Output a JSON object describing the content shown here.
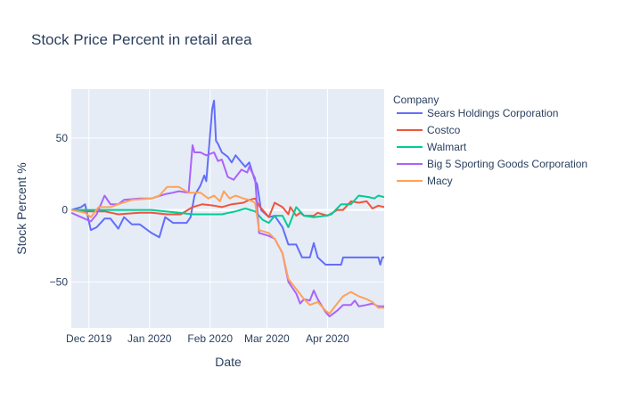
{
  "chart_data": {
    "type": "line",
    "title": "Stock Price Percent in retail area",
    "xlabel": "Date",
    "ylabel": "Stock Percent %",
    "x_range": [
      "2019-11-22",
      "2020-04-30"
    ],
    "ylim": [
      -82,
      84
    ],
    "x_ticks": [
      {
        "date": "2019-12-01",
        "label": "Dec 2019"
      },
      {
        "date": "2020-01-01",
        "label": "Jan 2020"
      },
      {
        "date": "2020-02-01",
        "label": "Feb 2020"
      },
      {
        "date": "2020-03-01",
        "label": "Mar 2020"
      },
      {
        "date": "2020-04-01",
        "label": "Apr 2020"
      }
    ],
    "y_ticks": [
      {
        "value": 50,
        "label": "50"
      },
      {
        "value": 0,
        "label": "0"
      },
      {
        "value": -50,
        "label": "−50"
      }
    ],
    "grid": true,
    "plot_background": "#e5ecf6",
    "legend": {
      "title": "Company",
      "placement": "right"
    },
    "series": [
      {
        "name": "Sears Holdings Corporation",
        "color": "#636efa",
        "points": [
          [
            "2019-11-22",
            0
          ],
          [
            "2019-11-27",
            2
          ],
          [
            "2019-11-29",
            4
          ],
          [
            "2019-12-02",
            -14
          ],
          [
            "2019-12-05",
            -12
          ],
          [
            "2019-12-09",
            -6
          ],
          [
            "2019-12-12",
            -6
          ],
          [
            "2019-12-16",
            -13
          ],
          [
            "2019-12-19",
            -5
          ],
          [
            "2019-12-23",
            -10
          ],
          [
            "2019-12-27",
            -10
          ],
          [
            "2020-01-02",
            -16
          ],
          [
            "2020-01-06",
            -19
          ],
          [
            "2020-01-09",
            -5
          ],
          [
            "2020-01-13",
            -9
          ],
          [
            "2020-01-16",
            -9
          ],
          [
            "2020-01-20",
            -9
          ],
          [
            "2020-01-22",
            -5
          ],
          [
            "2020-01-24",
            10
          ],
          [
            "2020-01-27",
            17
          ],
          [
            "2020-01-29",
            24
          ],
          [
            "2020-01-30",
            20
          ],
          [
            "2020-02-02",
            70
          ],
          [
            "2020-02-03",
            76
          ],
          [
            "2020-02-04",
            48
          ],
          [
            "2020-02-05",
            46
          ],
          [
            "2020-02-07",
            40
          ],
          [
            "2020-02-10",
            37
          ],
          [
            "2020-02-12",
            33
          ],
          [
            "2020-02-14",
            38
          ],
          [
            "2020-02-17",
            33
          ],
          [
            "2020-02-19",
            30
          ],
          [
            "2020-02-21",
            33
          ],
          [
            "2020-02-24",
            20
          ],
          [
            "2020-02-25",
            18
          ],
          [
            "2020-02-27",
            0
          ],
          [
            "2020-03-02",
            -5
          ],
          [
            "2020-03-05",
            -4
          ],
          [
            "2020-03-09",
            -12
          ],
          [
            "2020-03-12",
            -24
          ],
          [
            "2020-03-16",
            -24
          ],
          [
            "2020-03-19",
            -33
          ],
          [
            "2020-03-23",
            -33
          ],
          [
            "2020-03-25",
            -23
          ],
          [
            "2020-03-27",
            -33
          ],
          [
            "2020-03-31",
            -38
          ],
          [
            "2020-04-03",
            -38
          ],
          [
            "2020-04-08",
            -38
          ],
          [
            "2020-04-09",
            -33
          ],
          [
            "2020-04-14",
            -33
          ],
          [
            "2020-04-20",
            -33
          ],
          [
            "2020-04-27",
            -33
          ],
          [
            "2020-04-28",
            -38
          ],
          [
            "2020-04-29",
            -33
          ],
          [
            "2020-04-30",
            -33
          ]
        ]
      },
      {
        "name": "Costco",
        "color": "#ef553b",
        "points": [
          [
            "2019-11-22",
            0
          ],
          [
            "2019-11-29",
            -1
          ],
          [
            "2019-12-09",
            -1
          ],
          [
            "2019-12-16",
            -3
          ],
          [
            "2019-12-27",
            -2
          ],
          [
            "2020-01-02",
            -2
          ],
          [
            "2020-01-10",
            -3
          ],
          [
            "2020-01-17",
            -3
          ],
          [
            "2020-01-23",
            2
          ],
          [
            "2020-01-28",
            4
          ],
          [
            "2020-02-03",
            3
          ],
          [
            "2020-02-07",
            2
          ],
          [
            "2020-02-12",
            4
          ],
          [
            "2020-02-18",
            5
          ],
          [
            "2020-02-21",
            7
          ],
          [
            "2020-02-24",
            8
          ],
          [
            "2020-02-26",
            3
          ],
          [
            "2020-03-02",
            -5
          ],
          [
            "2020-03-05",
            5
          ],
          [
            "2020-03-09",
            2
          ],
          [
            "2020-03-12",
            -3
          ],
          [
            "2020-03-13",
            2
          ],
          [
            "2020-03-16",
            -4
          ],
          [
            "2020-03-18",
            -2
          ],
          [
            "2020-03-20",
            -4
          ],
          [
            "2020-03-25",
            -4
          ],
          [
            "2020-03-27",
            -2
          ],
          [
            "2020-04-01",
            -4
          ],
          [
            "2020-04-06",
            0
          ],
          [
            "2020-04-09",
            0
          ],
          [
            "2020-04-13",
            6
          ],
          [
            "2020-04-17",
            5
          ],
          [
            "2020-04-21",
            6
          ],
          [
            "2020-04-24",
            1
          ],
          [
            "2020-04-27",
            3
          ],
          [
            "2020-04-30",
            2
          ]
        ]
      },
      {
        "name": "Walmart",
        "color": "#00cc96",
        "points": [
          [
            "2019-11-22",
            0
          ],
          [
            "2019-12-02",
            0
          ],
          [
            "2019-12-16",
            0
          ],
          [
            "2020-01-02",
            0
          ],
          [
            "2020-01-16",
            -2
          ],
          [
            "2020-01-23",
            -3
          ],
          [
            "2020-02-03",
            -3
          ],
          [
            "2020-02-07",
            -3
          ],
          [
            "2020-02-14",
            -1
          ],
          [
            "2020-02-19",
            1
          ],
          [
            "2020-02-24",
            -1
          ],
          [
            "2020-02-28",
            -7
          ],
          [
            "2020-03-02",
            -9
          ],
          [
            "2020-03-05",
            -4
          ],
          [
            "2020-03-09",
            -4
          ],
          [
            "2020-03-12",
            -12
          ],
          [
            "2020-03-16",
            2
          ],
          [
            "2020-03-20",
            -4
          ],
          [
            "2020-03-25",
            -5
          ],
          [
            "2020-03-31",
            -4
          ],
          [
            "2020-04-03",
            -3
          ],
          [
            "2020-04-08",
            4
          ],
          [
            "2020-04-13",
            4
          ],
          [
            "2020-04-17",
            10
          ],
          [
            "2020-04-22",
            9
          ],
          [
            "2020-04-25",
            8
          ],
          [
            "2020-04-27",
            10
          ],
          [
            "2020-04-30",
            9
          ]
        ]
      },
      {
        "name": "Big 5 Sporting Goods Corporation",
        "color": "#ab63fa",
        "points": [
          [
            "2019-11-22",
            -2
          ],
          [
            "2019-11-27",
            -5
          ],
          [
            "2019-12-02",
            -8
          ],
          [
            "2019-12-05",
            -3
          ],
          [
            "2019-12-09",
            10
          ],
          [
            "2019-12-12",
            4
          ],
          [
            "2019-12-16",
            4
          ],
          [
            "2019-12-19",
            7
          ],
          [
            "2019-12-27",
            8
          ],
          [
            "2020-01-02",
            8
          ],
          [
            "2020-01-09",
            11
          ],
          [
            "2020-01-13",
            12
          ],
          [
            "2020-01-16",
            13
          ],
          [
            "2020-01-21",
            12
          ],
          [
            "2020-01-23",
            45
          ],
          [
            "2020-01-24",
            40
          ],
          [
            "2020-01-27",
            40
          ],
          [
            "2020-01-30",
            38
          ],
          [
            "2020-02-03",
            40
          ],
          [
            "2020-02-05",
            34
          ],
          [
            "2020-02-07",
            35
          ],
          [
            "2020-02-10",
            23
          ],
          [
            "2020-02-13",
            21
          ],
          [
            "2020-02-17",
            28
          ],
          [
            "2020-02-20",
            26
          ],
          [
            "2020-02-21",
            30
          ],
          [
            "2020-02-24",
            22
          ],
          [
            "2020-02-26",
            -16
          ],
          [
            "2020-03-02",
            -18
          ],
          [
            "2020-03-05",
            -20
          ],
          [
            "2020-03-09",
            -30
          ],
          [
            "2020-03-12",
            -50
          ],
          [
            "2020-03-16",
            -58
          ],
          [
            "2020-03-18",
            -65
          ],
          [
            "2020-03-20",
            -62
          ],
          [
            "2020-03-23",
            -63
          ],
          [
            "2020-03-25",
            -56
          ],
          [
            "2020-03-27",
            -62
          ],
          [
            "2020-03-31",
            -71
          ],
          [
            "2020-04-02",
            -74
          ],
          [
            "2020-04-06",
            -70
          ],
          [
            "2020-04-09",
            -66
          ],
          [
            "2020-04-13",
            -66
          ],
          [
            "2020-04-15",
            -63
          ],
          [
            "2020-04-17",
            -67
          ],
          [
            "2020-04-21",
            -66
          ],
          [
            "2020-04-24",
            -65
          ],
          [
            "2020-04-27",
            -67
          ],
          [
            "2020-04-30",
            -67
          ]
        ]
      },
      {
        "name": "Macy",
        "color": "#ffa15a",
        "points": [
          [
            "2019-11-22",
            0
          ],
          [
            "2019-11-29",
            -2
          ],
          [
            "2019-12-02",
            -5
          ],
          [
            "2019-12-06",
            2
          ],
          [
            "2019-12-12",
            2
          ],
          [
            "2019-12-16",
            4
          ],
          [
            "2019-12-23",
            7
          ],
          [
            "2020-01-02",
            8
          ],
          [
            "2020-01-06",
            10
          ],
          [
            "2020-01-10",
            16
          ],
          [
            "2020-01-16",
            16
          ],
          [
            "2020-01-21",
            12
          ],
          [
            "2020-01-27",
            12
          ],
          [
            "2020-01-31",
            8
          ],
          [
            "2020-02-03",
            10
          ],
          [
            "2020-02-06",
            6
          ],
          [
            "2020-02-08",
            13
          ],
          [
            "2020-02-11",
            8
          ],
          [
            "2020-02-14",
            10
          ],
          [
            "2020-02-18",
            8
          ],
          [
            "2020-02-21",
            7
          ],
          [
            "2020-02-24",
            5
          ],
          [
            "2020-02-26",
            -14
          ],
          [
            "2020-03-02",
            -16
          ],
          [
            "2020-03-05",
            -20
          ],
          [
            "2020-03-09",
            -30
          ],
          [
            "2020-03-12",
            -48
          ],
          [
            "2020-03-16",
            -55
          ],
          [
            "2020-03-20",
            -62
          ],
          [
            "2020-03-23",
            -66
          ],
          [
            "2020-03-27",
            -64
          ],
          [
            "2020-03-31",
            -70
          ],
          [
            "2020-04-02",
            -72
          ],
          [
            "2020-04-06",
            -65
          ],
          [
            "2020-04-09",
            -60
          ],
          [
            "2020-04-13",
            -57
          ],
          [
            "2020-04-17",
            -60
          ],
          [
            "2020-04-21",
            -62
          ],
          [
            "2020-04-24",
            -64
          ],
          [
            "2020-04-27",
            -68
          ],
          [
            "2020-04-30",
            -68
          ]
        ]
      }
    ]
  }
}
